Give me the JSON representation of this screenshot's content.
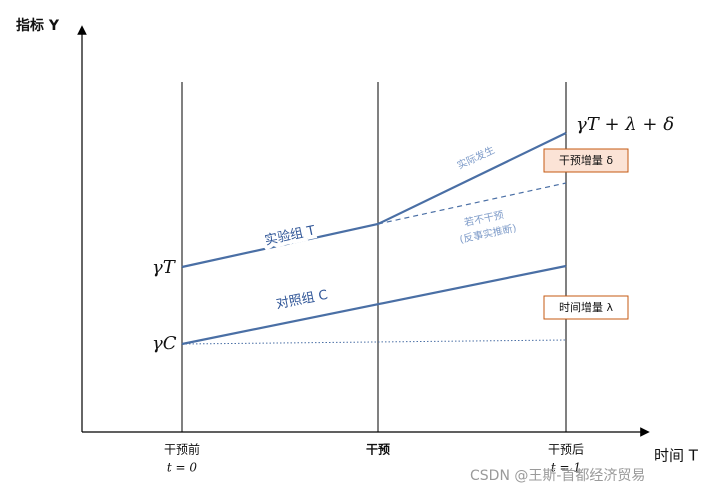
{
  "y_axis_label": "指标 Y",
  "x_axis_label": "时间 T",
  "x_labels": [
    {
      "name": "干预前",
      "sub": "t = 0"
    },
    {
      "name": "干预"
    },
    {
      "name": "干预后",
      "sub": "t = 1"
    }
  ],
  "start_labels": {
    "treatment": "γT",
    "control": "γC"
  },
  "end_label": "γT + λ + δ",
  "group_labels": {
    "treatment": "实验组 T",
    "control": "对照组 C"
  },
  "notes": {
    "actual": "实际发生",
    "counterfactual": [
      "若不干预",
      "(反事实推断)"
    ]
  },
  "boxes": {
    "treatment_effect": "干预增量 δ",
    "time_effect": "时间增量 λ"
  },
  "watermark": "CSDN @王斯-首都经济贸易"
}
